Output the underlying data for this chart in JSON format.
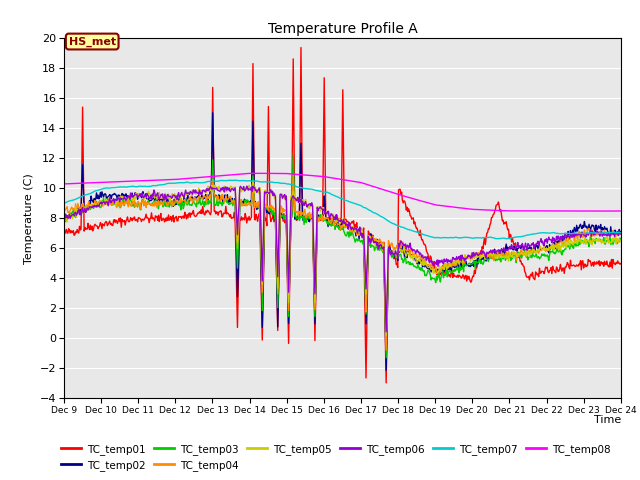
{
  "title": "Temperature Profile A",
  "xlabel": "Time",
  "ylabel": "Temperature (C)",
  "ylim": [
    -4,
    20
  ],
  "xlim": [
    0,
    360
  ],
  "annotation_text": "HS_met",
  "annotation_bg": "#FFFFA0",
  "annotation_border": "#8B0000",
  "bg_color": "#E8E8E8",
  "series_colors": {
    "TC_temp01": "#FF0000",
    "TC_temp02": "#00008B",
    "TC_temp03": "#00CC00",
    "TC_temp04": "#FF8C00",
    "TC_temp05": "#CCCC00",
    "TC_temp06": "#9400D3",
    "TC_temp07": "#00CCCC",
    "TC_temp08": "#FF00FF"
  },
  "xtick_labels": [
    "Dec 9",
    "Dec 10",
    "Dec 11",
    "Dec 12",
    "Dec 13",
    "Dec 14",
    "Dec 15",
    "Dec 16",
    "Dec 17",
    "Dec 18",
    "Dec 19",
    "Dec 20",
    "Dec 21",
    "Dec 22",
    "Dec 23",
    "Dec 24"
  ],
  "xtick_positions": [
    0,
    24,
    48,
    72,
    96,
    120,
    144,
    168,
    192,
    216,
    240,
    264,
    288,
    312,
    336,
    360
  ],
  "ytick_positions": [
    -4,
    -2,
    0,
    2,
    4,
    6,
    8,
    10,
    12,
    14,
    16,
    18,
    20
  ]
}
